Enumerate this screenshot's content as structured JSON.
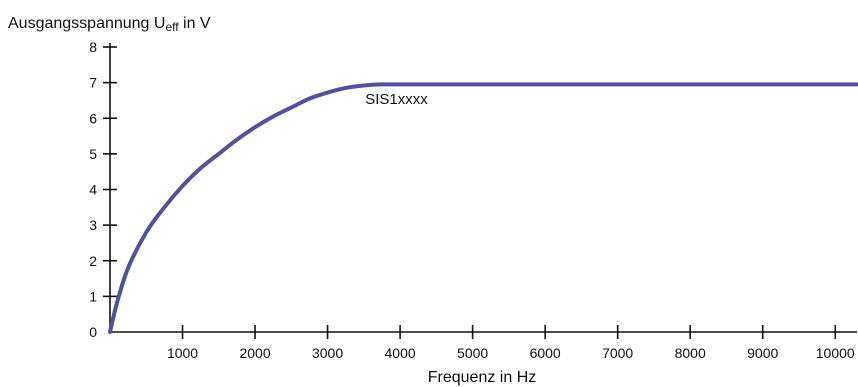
{
  "chart_data": {
    "type": "line",
    "ylabel_main": "Ausgangsspannung U",
    "ylabel_sub": "eff",
    "ylabel_unit": " in V",
    "xlabel": "Frequenz in Hz",
    "xlim": [
      0,
      10300
    ],
    "ylim": [
      0,
      8
    ],
    "xticks": [
      1000,
      2000,
      3000,
      4000,
      5000,
      6000,
      7000,
      8000,
      9000,
      10000
    ],
    "yticks": [
      0,
      1,
      2,
      3,
      4,
      5,
      6,
      7,
      8
    ],
    "grid": false,
    "line_color": "#5450a0",
    "series": [
      {
        "name": "SIS1xxxx",
        "x": [
          0,
          100,
          250,
          500,
          750,
          1000,
          1250,
          1500,
          1750,
          2000,
          2250,
          2500,
          2750,
          3000,
          3250,
          3500,
          3750,
          4000,
          5000,
          6000,
          7000,
          8000,
          9000,
          10000,
          10300
        ],
        "y": [
          0,
          0.85,
          1.8,
          2.8,
          3.5,
          4.1,
          4.6,
          5.0,
          5.4,
          5.75,
          6.05,
          6.3,
          6.55,
          6.72,
          6.85,
          6.92,
          6.95,
          6.95,
          6.95,
          6.95,
          6.95,
          6.95,
          6.95,
          6.95,
          6.95
        ]
      }
    ],
    "annotation": {
      "text": "SIS1xxxx",
      "x": 3950,
      "y": 6.4
    }
  }
}
